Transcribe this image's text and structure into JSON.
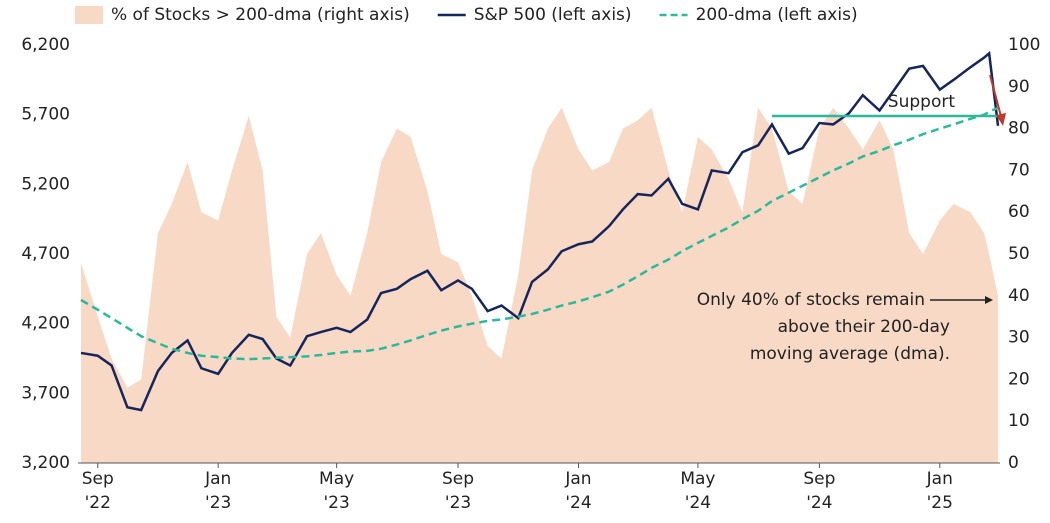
{
  "chart_data": {
    "type": "line",
    "x": [
      "2022-08-15",
      "2022-09-01",
      "2022-09-15",
      "2022-10-01",
      "2022-10-15",
      "2022-11-01",
      "2022-11-15",
      "2022-12-01",
      "2022-12-15",
      "2023-01-01",
      "2023-01-15",
      "2023-02-01",
      "2023-02-15",
      "2023-03-01",
      "2023-03-15",
      "2023-04-01",
      "2023-04-15",
      "2023-05-01",
      "2023-05-15",
      "2023-06-01",
      "2023-06-15",
      "2023-07-01",
      "2023-07-15",
      "2023-08-01",
      "2023-08-15",
      "2023-09-01",
      "2023-09-15",
      "2023-10-01",
      "2023-10-15",
      "2023-11-01",
      "2023-11-15",
      "2023-12-01",
      "2023-12-15",
      "2024-01-01",
      "2024-01-15",
      "2024-02-01",
      "2024-02-15",
      "2024-03-01",
      "2024-03-15",
      "2024-04-01",
      "2024-04-15",
      "2024-05-01",
      "2024-05-15",
      "2024-06-01",
      "2024-06-15",
      "2024-07-01",
      "2024-07-15",
      "2024-08-01",
      "2024-08-15",
      "2024-09-01",
      "2024-09-15",
      "2024-10-01",
      "2024-10-15",
      "2024-11-01",
      "2024-11-15",
      "2024-12-01",
      "2024-12-15",
      "2025-01-01",
      "2025-01-15",
      "2025-02-01",
      "2025-02-15",
      "2025-02-20",
      "2025-03-01"
    ],
    "series": [
      {
        "name": "% of Stocks > 200-dma (right axis)",
        "color": "#f7d9c6",
        "style": "area",
        "axis": "y2",
        "values": [
          48,
          35,
          25,
          18,
          20,
          55,
          62,
          72,
          60,
          58,
          70,
          83,
          70,
          35,
          30,
          50,
          55,
          45,
          40,
          55,
          72,
          80,
          78,
          65,
          50,
          48,
          40,
          28,
          25,
          45,
          70,
          80,
          85,
          75,
          70,
          72,
          80,
          82,
          85,
          70,
          60,
          78,
          75,
          68,
          60,
          85,
          80,
          65,
          62,
          80,
          85,
          80,
          75,
          82,
          75,
          55,
          50,
          58,
          62,
          60,
          55,
          50,
          40
        ]
      },
      {
        "name": "S&P 500 (left axis)",
        "color": "#16265c",
        "style": "solid",
        "values": [
          3990,
          3970,
          3900,
          3600,
          3580,
          3860,
          3990,
          4080,
          3880,
          3840,
          3990,
          4120,
          4090,
          3950,
          3900,
          4110,
          4140,
          4170,
          4140,
          4230,
          4420,
          4450,
          4520,
          4580,
          4440,
          4510,
          4450,
          4290,
          4330,
          4240,
          4500,
          4590,
          4720,
          4770,
          4790,
          4900,
          5020,
          5130,
          5120,
          5240,
          5060,
          5020,
          5300,
          5280,
          5430,
          5480,
          5630,
          5420,
          5460,
          5640,
          5630,
          5710,
          5840,
          5730,
          5870,
          6030,
          6050,
          5880,
          5950,
          6040,
          6110,
          6140,
          5620
        ]
      },
      {
        "name": "200-dma (left axis)",
        "color": "#2bb99a",
        "style": "dashed",
        "values": [
          4370,
          4300,
          4240,
          4170,
          4110,
          4060,
          4020,
          3990,
          3970,
          3960,
          3950,
          3945,
          3950,
          3955,
          3960,
          3965,
          3975,
          3990,
          4000,
          4005,
          4020,
          4050,
          4080,
          4120,
          4150,
          4180,
          4200,
          4220,
          4230,
          4250,
          4270,
          4300,
          4330,
          4360,
          4390,
          4430,
          4480,
          4540,
          4600,
          4660,
          4720,
          4780,
          4830,
          4890,
          4950,
          5010,
          5080,
          5140,
          5190,
          5250,
          5300,
          5350,
          5400,
          5440,
          5480,
          5520,
          5560,
          5600,
          5630,
          5670,
          5700,
          5720,
          5750
        ]
      }
    ],
    "xlim": [
      "2022-08-12",
      "2025-03-03"
    ],
    "xticks": [
      {
        "value": "2022-09-01",
        "label": "Sep '22"
      },
      {
        "value": "2023-01-01",
        "label": "Jan '23"
      },
      {
        "value": "2023-05-01",
        "label": "May '23"
      },
      {
        "value": "2023-09-01",
        "label": "Sep '23"
      },
      {
        "value": "2024-01-01",
        "label": "Jan '24"
      },
      {
        "value": "2024-05-01",
        "label": "May '24"
      },
      {
        "value": "2024-09-01",
        "label": "Sep '24"
      },
      {
        "value": "2025-01-01",
        "label": "Jan '25"
      }
    ],
    "ylim": [
      3200,
      6200
    ],
    "yticks": [
      {
        "value": 3200,
        "label": "3,200"
      },
      {
        "value": 3700,
        "label": "3,700"
      },
      {
        "value": 4200,
        "label": "4,200"
      },
      {
        "value": 4700,
        "label": "4,700"
      },
      {
        "value": 5200,
        "label": "5,200"
      },
      {
        "value": 5700,
        "label": "5,700"
      },
      {
        "value": 6200,
        "label": "6,200"
      }
    ],
    "y2lim": [
      0,
      100
    ],
    "y2ticks": [
      0,
      10,
      20,
      30,
      40,
      50,
      60,
      70,
      80,
      90,
      100
    ],
    "support": {
      "label": "Support",
      "value": 5690,
      "x": [
        "2024-07-15",
        "2025-03-01"
      ],
      "color": "#2bb99a"
    },
    "annotation": [
      "Only 40% of stocks remain",
      "above their 200-day",
      "moving average (dma)."
    ]
  }
}
